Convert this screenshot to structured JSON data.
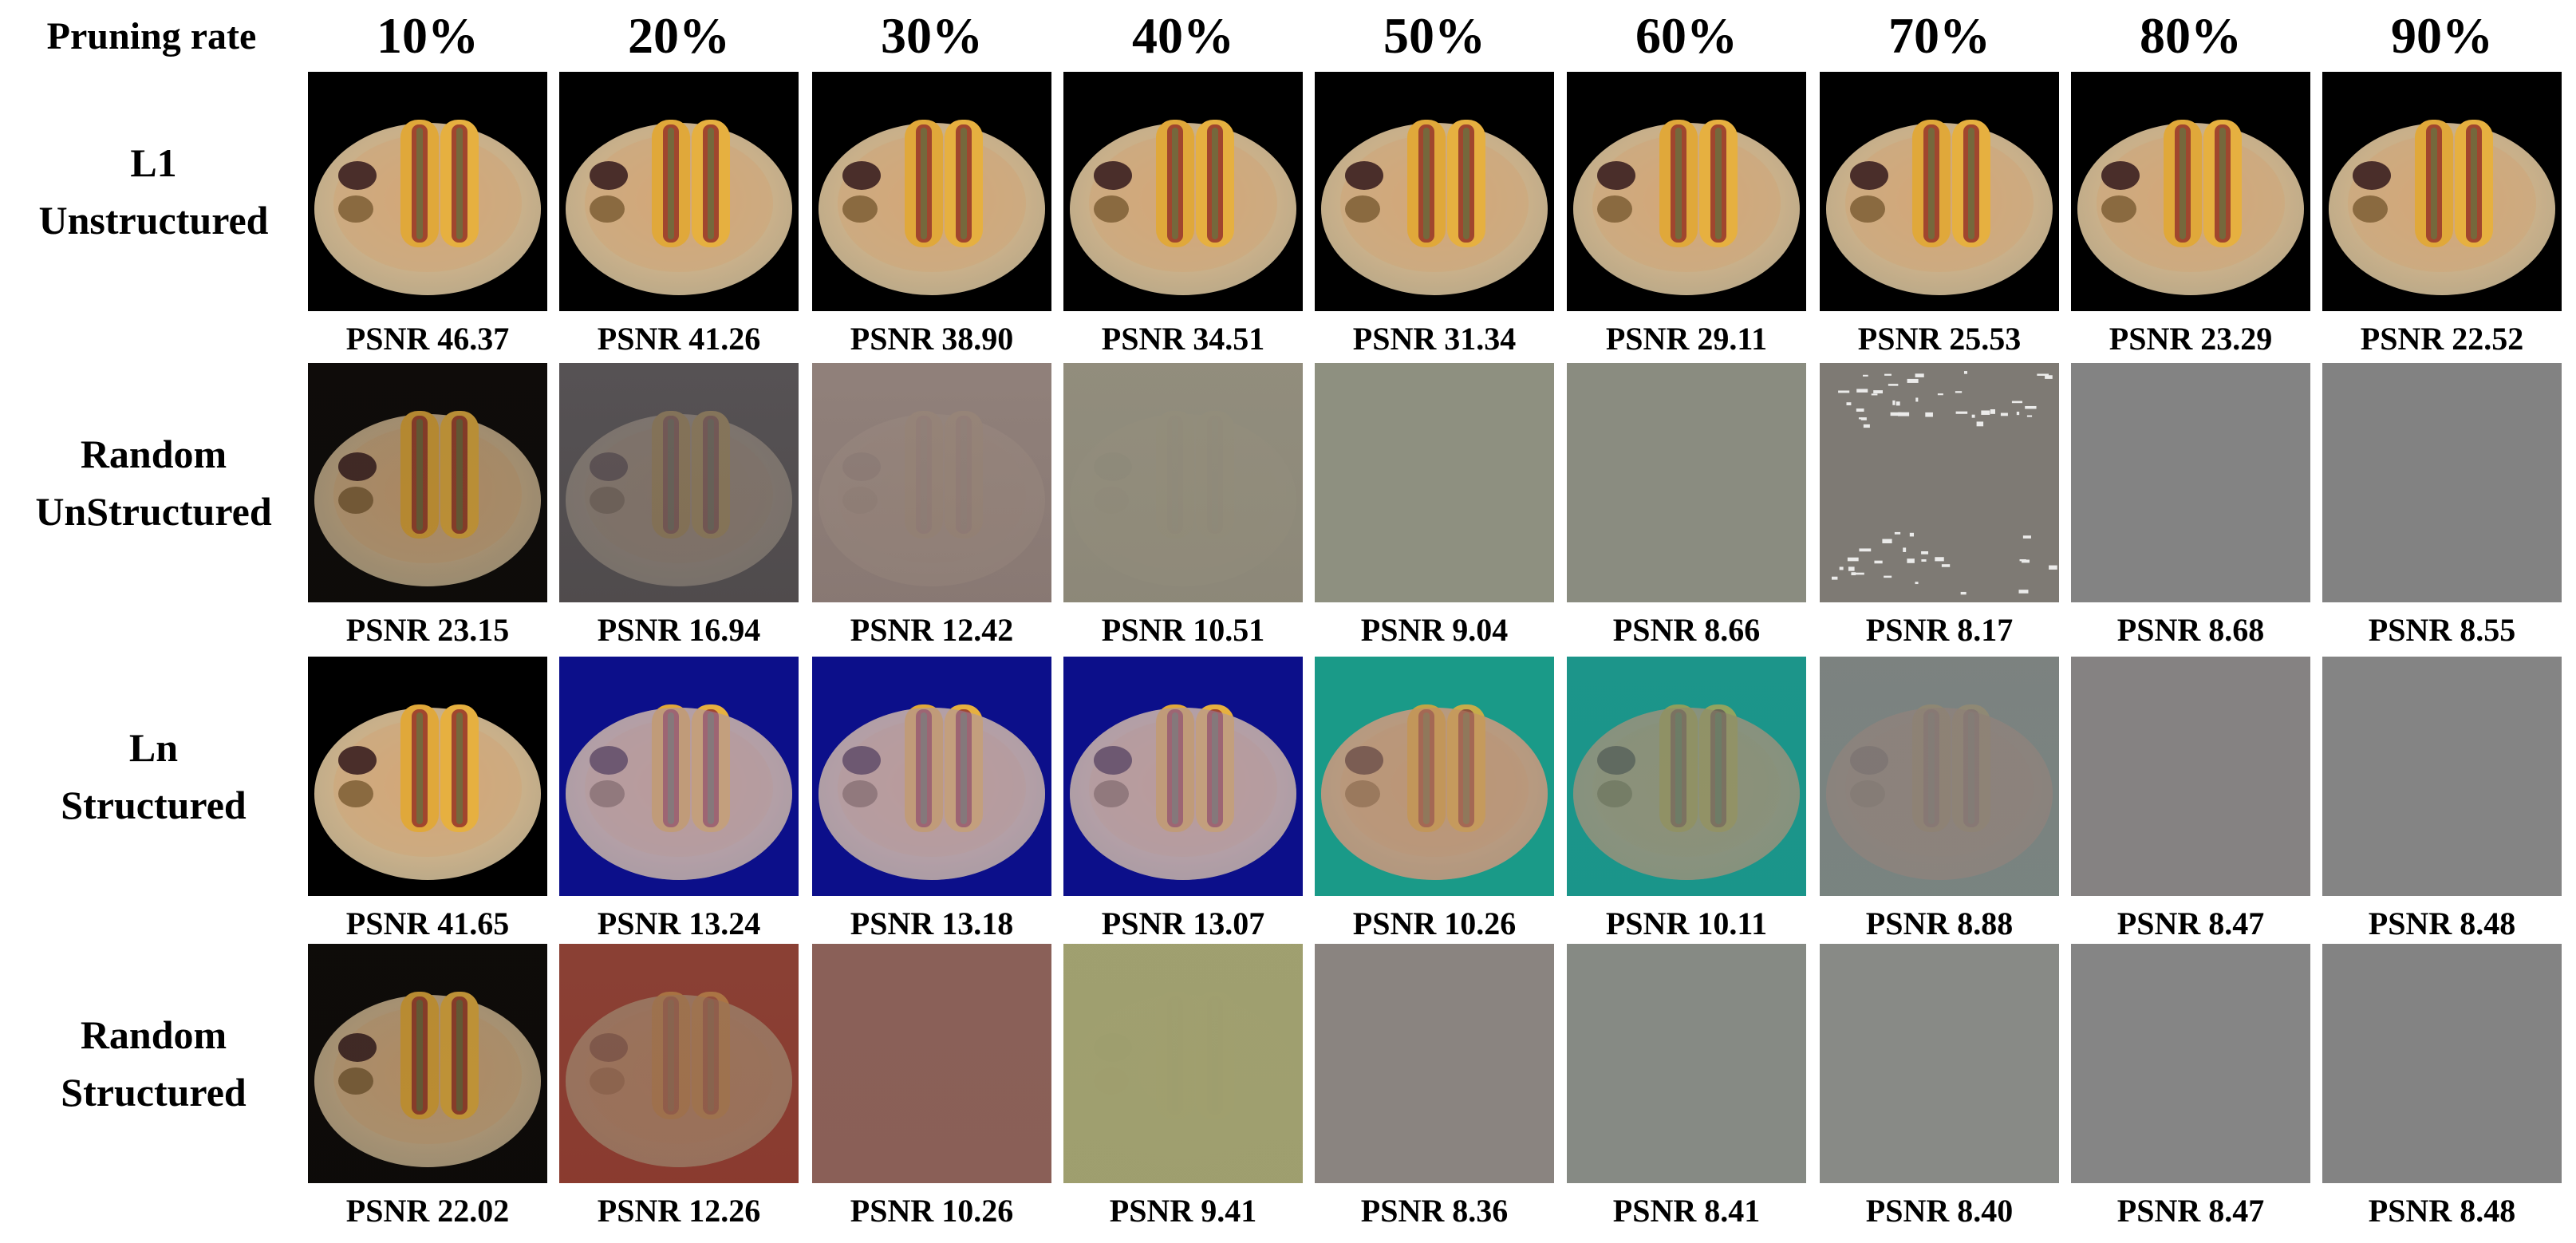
{
  "header": {
    "corner_label": "Pruning rate",
    "rates": [
      "10%",
      "20%",
      "30%",
      "40%",
      "50%",
      "60%",
      "70%",
      "80%",
      "90%"
    ]
  },
  "rows": [
    {
      "label_line1": "L1",
      "label_line2": "Unstructured",
      "cells": [
        {
          "psnr": "PSNR 46.37",
          "bg": "#000000",
          "dish": 1.0,
          "haze": "#000000",
          "haze_opacity": 0.0,
          "tint": "none",
          "noise": false
        },
        {
          "psnr": "PSNR 41.26",
          "bg": "#000000",
          "dish": 1.0,
          "haze": "#000000",
          "haze_opacity": 0.0,
          "tint": "none",
          "noise": false
        },
        {
          "psnr": "PSNR 38.90",
          "bg": "#000000",
          "dish": 1.0,
          "haze": "#000000",
          "haze_opacity": 0.0,
          "tint": "none",
          "noise": false
        },
        {
          "psnr": "PSNR 34.51",
          "bg": "#000000",
          "dish": 1.0,
          "haze": "#000000",
          "haze_opacity": 0.0,
          "tint": "none",
          "noise": false
        },
        {
          "psnr": "PSNR 31.34",
          "bg": "#000000",
          "dish": 1.0,
          "haze": "#000000",
          "haze_opacity": 0.0,
          "tint": "none",
          "noise": false
        },
        {
          "psnr": "PSNR 29.11",
          "bg": "#000000",
          "dish": 1.0,
          "haze": "#000000",
          "haze_opacity": 0.0,
          "tint": "none",
          "noise": false
        },
        {
          "psnr": "PSNR 25.53",
          "bg": "#000000",
          "dish": 1.0,
          "haze": "#000000",
          "haze_opacity": 0.0,
          "tint": "none",
          "noise": false
        },
        {
          "psnr": "PSNR 23.29",
          "bg": "#000000",
          "dish": 1.0,
          "haze": "#000000",
          "haze_opacity": 0.0,
          "tint": "none",
          "noise": false
        },
        {
          "psnr": "PSNR 22.52",
          "bg": "#000000",
          "dish": 1.0,
          "haze": "#000000",
          "haze_opacity": 0.0,
          "tint": "none",
          "noise": false
        }
      ]
    },
    {
      "label_line1": "Random",
      "label_line2": "UnStructured",
      "cells": [
        {
          "psnr": "PSNR 23.15",
          "bg": "#0a0806",
          "dish": 0.9,
          "haze": "#2a2520",
          "haze_opacity": 0.15,
          "tint": "none",
          "noise": false
        },
        {
          "psnr": "PSNR 16.94",
          "bg": "#2a2420",
          "dish": 0.45,
          "haze": "#8c8a94",
          "haze_opacity": 0.45,
          "tint": "none",
          "noise": false
        },
        {
          "psnr": "PSNR 12.42",
          "bg": "#5a4a48",
          "dish": 0.15,
          "haze": "#a89890",
          "haze_opacity": 0.7,
          "tint": "none",
          "noise": false
        },
        {
          "psnr": "PSNR 10.51",
          "bg": "#706a60",
          "dish": 0.08,
          "haze": "#9a9684",
          "haze_opacity": 0.8,
          "tint": "none",
          "noise": false
        },
        {
          "psnr": "PSNR 9.04",
          "bg": "#8e9080",
          "dish": 0.0,
          "haze": "#8e9080",
          "haze_opacity": 1.0,
          "tint": "none",
          "noise": false
        },
        {
          "psnr": "PSNR 8.66",
          "bg": "#8a8c80",
          "dish": 0.0,
          "haze": "#8a8c80",
          "haze_opacity": 1.0,
          "tint": "none",
          "noise": false
        },
        {
          "psnr": "PSNR 8.17",
          "bg": "#7e7a74",
          "dish": 0.0,
          "haze": "#7e7a74",
          "haze_opacity": 1.0,
          "tint": "none",
          "noise": true
        },
        {
          "psnr": "PSNR 8.68",
          "bg": "#838383",
          "dish": 0.0,
          "haze": "#838383",
          "haze_opacity": 1.0,
          "tint": "none",
          "noise": false
        },
        {
          "psnr": "PSNR 8.55",
          "bg": "#828282",
          "dish": 0.0,
          "haze": "#828282",
          "haze_opacity": 1.0,
          "tint": "none",
          "noise": false
        }
      ]
    },
    {
      "label_line1": "Ln",
      "label_line2": "Structured",
      "cells": [
        {
          "psnr": "PSNR 41.65",
          "bg": "#000000",
          "dish": 1.0,
          "haze": "#000000",
          "haze_opacity": 0.0,
          "tint": "none",
          "noise": false
        },
        {
          "psnr": "PSNR 13.24",
          "bg": "#0c0f8a",
          "dish": 1.0,
          "haze": "#000000",
          "haze_opacity": 0.0,
          "tint": "#9a8cc8",
          "noise": false
        },
        {
          "psnr": "PSNR 13.18",
          "bg": "#0c0f8a",
          "dish": 1.0,
          "haze": "#000000",
          "haze_opacity": 0.0,
          "tint": "#9a8cc8",
          "noise": false
        },
        {
          "psnr": "PSNR 13.07",
          "bg": "#0c0f8a",
          "dish": 1.0,
          "haze": "#000000",
          "haze_opacity": 0.0,
          "tint": "#9a8cc8",
          "noise": false
        },
        {
          "psnr": "PSNR 10.26",
          "bg": "#1a9a88",
          "dish": 0.85,
          "haze": "#000000",
          "haze_opacity": 0.0,
          "tint": "#e08070",
          "noise": false
        },
        {
          "psnr": "PSNR 10.11",
          "bg": "#14968a",
          "dish": 0.7,
          "haze": "#3a9088",
          "haze_opacity": 0.2,
          "tint": "#e07060",
          "noise": false
        },
        {
          "psnr": "PSNR 8.88",
          "bg": "#6a8a86",
          "dish": 0.35,
          "haze": "#8a7c7a",
          "haze_opacity": 0.55,
          "tint": "#d06060",
          "noise": false
        },
        {
          "psnr": "PSNR 8.47",
          "bg": "#858282",
          "dish": 0.0,
          "haze": "#858282",
          "haze_opacity": 1.0,
          "tint": "none",
          "noise": false
        },
        {
          "psnr": "PSNR 8.48",
          "bg": "#848484",
          "dish": 0.0,
          "haze": "#848484",
          "haze_opacity": 1.0,
          "tint": "none",
          "noise": false
        }
      ]
    },
    {
      "label_line1": "Random",
      "label_line2": "Structured",
      "cells": [
        {
          "psnr": "PSNR 22.02",
          "bg": "#0a0806",
          "dish": 0.9,
          "haze": "#2a2520",
          "haze_opacity": 0.12,
          "tint": "none",
          "noise": false
        },
        {
          "psnr": "PSNR 12.26",
          "bg": "#8a1a10",
          "dish": 0.5,
          "haze": "#8a9a8a",
          "haze_opacity": 0.3,
          "tint": "#9aa888",
          "noise": false
        },
        {
          "psnr": "PSNR 10.26",
          "bg": "#8a5a50",
          "dish": 0.0,
          "haze": "#8a6058",
          "haze_opacity": 1.0,
          "tint": "none",
          "noise": false
        },
        {
          "psnr": "PSNR 9.41",
          "bg": "#9a9a6a",
          "dish": 0.05,
          "haze": "#a0a070",
          "haze_opacity": 0.9,
          "tint": "none",
          "noise": false
        },
        {
          "psnr": "PSNR 8.36",
          "bg": "#8a8480",
          "dish": 0.0,
          "haze": "#8a8480",
          "haze_opacity": 1.0,
          "tint": "none",
          "noise": false
        },
        {
          "psnr": "PSNR 8.41",
          "bg": "#868a84",
          "dish": 0.0,
          "haze": "#868a84",
          "haze_opacity": 1.0,
          "tint": "none",
          "noise": false
        },
        {
          "psnr": "PSNR 8.40",
          "bg": "#888a86",
          "dish": 0.0,
          "haze": "#888a86",
          "haze_opacity": 1.0,
          "tint": "none",
          "noise": false
        },
        {
          "psnr": "PSNR 8.47",
          "bg": "#858585",
          "dish": 0.0,
          "haze": "#858585",
          "haze_opacity": 1.0,
          "tint": "none",
          "noise": false
        },
        {
          "psnr": "PSNR 8.48",
          "bg": "#838383",
          "dish": 0.0,
          "haze": "#838383",
          "haze_opacity": 1.0,
          "tint": "none",
          "noise": false
        }
      ]
    }
  ]
}
